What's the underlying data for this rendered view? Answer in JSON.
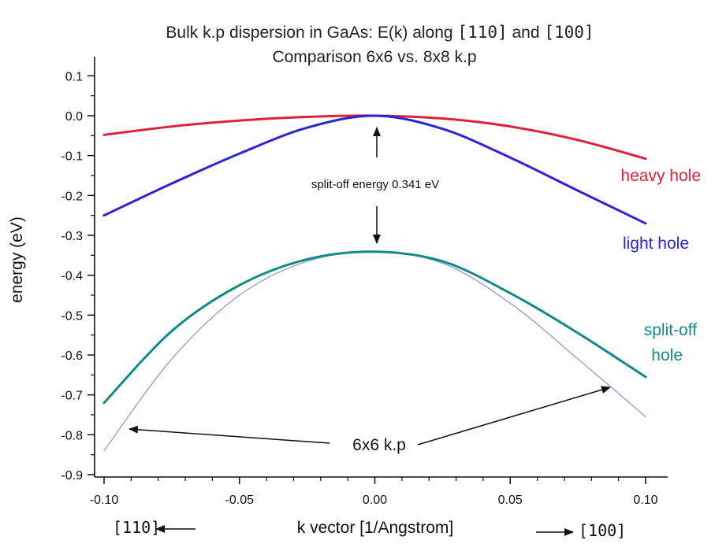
{
  "chart_data": {
    "type": "line",
    "title_line1_prefix": "Bulk k.p dispersion in GaAs: E(k) along ",
    "title_dir1": "[110]",
    "title_and": " and ",
    "title_dir2": "[100]",
    "title_line2": "Comparison 6x6 vs. 8x8 k.p",
    "xlabel": "k vector [1/Angstrom]",
    "ylabel": "energy (eV)",
    "xlim": [
      -0.105,
      0.108
    ],
    "ylim": [
      -0.905,
      0.15
    ],
    "x_ticks": [
      -0.1,
      -0.05,
      0.0,
      0.05,
      0.1
    ],
    "x_tick_labels": [
      "-0.10",
      "-0.05",
      "0.00",
      "0.05",
      "0.10"
    ],
    "y_ticks": [
      0.1,
      0.0,
      -0.1,
      -0.2,
      -0.3,
      -0.4,
      -0.5,
      -0.6,
      -0.7,
      -0.8,
      -0.9
    ],
    "y_tick_labels": [
      "0.1",
      "0.0",
      "-0.1",
      "-0.2",
      "-0.3",
      "-0.4",
      "-0.5",
      "-0.6",
      "-0.7",
      "-0.8",
      "-0.9"
    ],
    "x_minor_step": 0.01,
    "y_minor_step": 0.05,
    "grid": false,
    "series": [
      {
        "name": "heavy hole",
        "color": "#e0203a",
        "x": [
          -0.1,
          -0.075,
          -0.05,
          -0.025,
          0.0,
          0.025,
          0.05,
          0.075,
          0.1
        ],
        "y": [
          -0.048,
          -0.027,
          -0.012,
          -0.003,
          0.0,
          -0.007,
          -0.027,
          -0.061,
          -0.108
        ]
      },
      {
        "name": "light hole",
        "color": "#2a25d8",
        "x": [
          -0.1,
          -0.075,
          -0.05,
          -0.025,
          0.0,
          0.025,
          0.05,
          0.075,
          0.1
        ],
        "y": [
          -0.25,
          -0.17,
          -0.095,
          -0.03,
          0.0,
          -0.033,
          -0.105,
          -0.188,
          -0.27
        ]
      },
      {
        "name": "split-off hole",
        "color": "#138a8a",
        "x": [
          -0.1,
          -0.075,
          -0.05,
          -0.025,
          0.0,
          0.025,
          0.05,
          0.075,
          0.1
        ],
        "y": [
          -0.72,
          -0.54,
          -0.425,
          -0.36,
          -0.341,
          -0.365,
          -0.445,
          -0.545,
          -0.655
        ]
      },
      {
        "name": "6x6 k.p",
        "color": "#8f8fd0",
        "x": [
          -0.1,
          -0.075,
          -0.05,
          -0.025,
          0.0,
          0.025,
          0.05,
          0.075,
          0.1
        ],
        "y": [
          -0.84,
          -0.61,
          -0.45,
          -0.365,
          -0.341,
          -0.37,
          -0.47,
          -0.61,
          -0.755
        ]
      }
    ],
    "annotations": {
      "split_off": "split-off energy 0.341 eV",
      "six_by_six": "6x6 k.p",
      "dir_left": "[110]",
      "dir_right": "[100]"
    }
  }
}
